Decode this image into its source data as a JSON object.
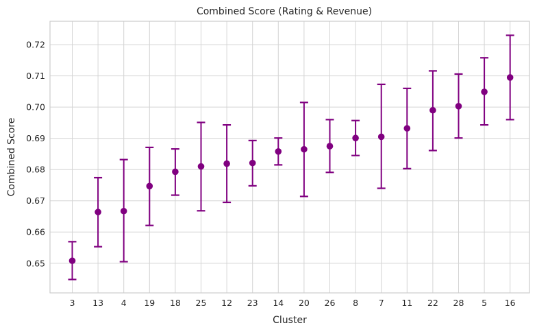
{
  "chart_data": {
    "type": "scatter",
    "title": "Combined Score (Rating & Revenue)",
    "xlabel": "Cluster",
    "ylabel": "Combined Score",
    "ylim": [
      0.6405,
      0.7275
    ],
    "yticks": [
      0.65,
      0.66,
      0.67,
      0.68,
      0.69,
      0.7,
      0.71,
      0.72
    ],
    "ytick_labels": [
      "0.65",
      "0.66",
      "0.67",
      "0.68",
      "0.69",
      "0.70",
      "0.71",
      "0.72"
    ],
    "grid": true,
    "color": "#800080",
    "categories": [
      "3",
      "13",
      "4",
      "19",
      "18",
      "25",
      "12",
      "23",
      "14",
      "20",
      "26",
      "8",
      "7",
      "11",
      "22",
      "28",
      "5",
      "16"
    ],
    "values": [
      0.6508,
      0.6664,
      0.6667,
      0.6747,
      0.6793,
      0.681,
      0.6819,
      0.6821,
      0.6858,
      0.6865,
      0.6875,
      0.6901,
      0.6905,
      0.6932,
      0.699,
      0.7003,
      0.7049,
      0.7095
    ],
    "lower": [
      0.6448,
      0.6553,
      0.6505,
      0.6621,
      0.6718,
      0.6668,
      0.6695,
      0.6748,
      0.6815,
      0.6714,
      0.6791,
      0.6845,
      0.674,
      0.6803,
      0.6861,
      0.6901,
      0.6943,
      0.696
    ],
    "upper": [
      0.6569,
      0.6774,
      0.6832,
      0.6871,
      0.6866,
      0.6951,
      0.6943,
      0.6893,
      0.6901,
      0.7015,
      0.696,
      0.6957,
      0.7073,
      0.706,
      0.7116,
      0.7106,
      0.7158,
      0.723
    ]
  }
}
